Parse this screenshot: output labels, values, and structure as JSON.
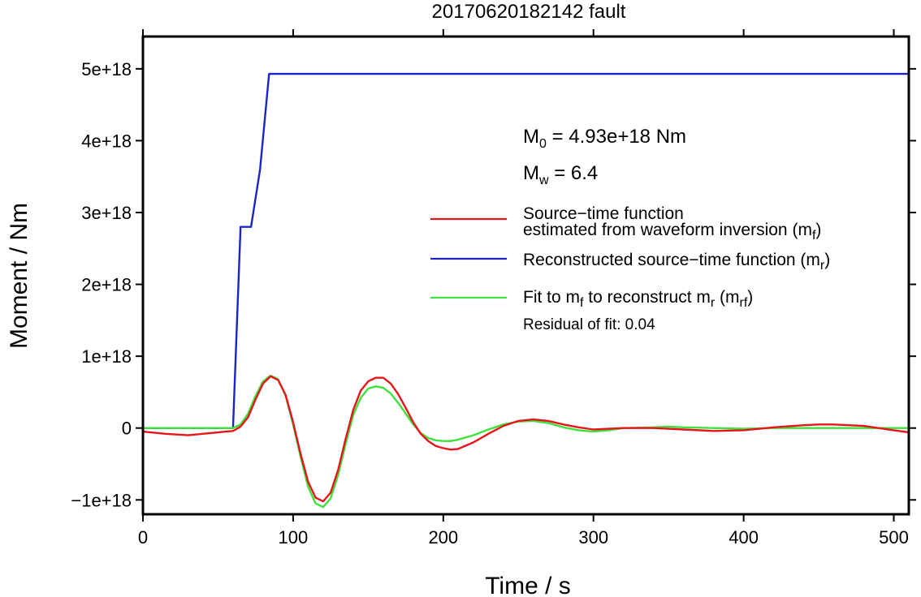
{
  "chart_data": {
    "type": "line",
    "title": "20170620182142 fault",
    "xlabel": "Time / s",
    "ylabel": "Moment / Nm",
    "xlim": [
      0,
      510
    ],
    "ylim": [
      -1.2e+18,
      5.45e+18
    ],
    "x_ticks": [
      0,
      100,
      200,
      300,
      400,
      500
    ],
    "x_tick_labels": [
      "0",
      "100",
      "200",
      "300",
      "400",
      "500"
    ],
    "y_ticks": [
      -1e+18,
      0,
      1e+18,
      2e+18,
      3e+18,
      4e+18,
      5e+18
    ],
    "y_tick_labels": [
      "−1e+18",
      "0",
      "1e+18",
      "2e+18",
      "3e+18",
      "4e+18",
      "5e+18"
    ],
    "grid": false,
    "legend_position": "right",
    "annotations": {
      "m0_prefix": "M",
      "m0_sub": "0",
      "m0_value": " = 4.93e+18 Nm",
      "mw_prefix": "M",
      "mw_sub": "w",
      "mw_value": " = 6.4",
      "residual": "Residual of fit: 0.04"
    },
    "legend": [
      {
        "line1": "Source−time function",
        "line2": "estimated from waveform inversion (m",
        "sub": "f",
        "close": ")",
        "color": "#e8141b"
      },
      {
        "line1": "Reconstructed source−time function (m",
        "sub": "r",
        "close": ")",
        "color": "#1a24c8"
      },
      {
        "line1": "Fit to m",
        "sub1": "f",
        "mid": " to reconstruct m",
        "sub2": "r",
        "mid2": " (m",
        "sub3": "rf",
        "close": ")",
        "color": "#3de23d"
      }
    ],
    "series": [
      {
        "color": "#1a24c8",
        "points": [
          [
            0,
            0
          ],
          [
            60,
            0
          ],
          [
            65,
            2.8e+18
          ],
          [
            72,
            2.8e+18
          ],
          [
            78,
            3.6e+18
          ],
          [
            84,
            4.93e+18
          ],
          [
            510,
            4.93e+18
          ]
        ]
      },
      {
        "color": "#3de23d",
        "points": [
          [
            0,
            0
          ],
          [
            55,
            0
          ],
          [
            60,
            0
          ],
          [
            65,
            5e+16
          ],
          [
            70,
            2e+17
          ],
          [
            75,
            4.5e+17
          ],
          [
            80,
            6.5e+17
          ],
          [
            85,
            7.3e+17
          ],
          [
            90,
            6.8e+17
          ],
          [
            95,
            4.5e+17
          ],
          [
            100,
            5e+16
          ],
          [
            105,
            -4e+17
          ],
          [
            110,
            -8.2e+17
          ],
          [
            115,
            -1.05e+18
          ],
          [
            120,
            -1.1e+18
          ],
          [
            125,
            -9.8e+17
          ],
          [
            130,
            -6.5e+17
          ],
          [
            135,
            -2.2e+17
          ],
          [
            140,
            1.8e+17
          ],
          [
            145,
            4.2e+17
          ],
          [
            150,
            5.5e+17
          ],
          [
            155,
            5.8e+17
          ],
          [
            160,
            5.6e+17
          ],
          [
            165,
            4.8e+17
          ],
          [
            170,
            3.5e+17
          ],
          [
            175,
            2e+17
          ],
          [
            180,
            5e+16
          ],
          [
            185,
            -7e+16
          ],
          [
            190,
            -1.4e+17
          ],
          [
            195,
            -1.7e+17
          ],
          [
            200,
            -1.8e+17
          ],
          [
            205,
            -1.8e+17
          ],
          [
            210,
            -1.6e+17
          ],
          [
            220,
            -1e+17
          ],
          [
            230,
            -2e+16
          ],
          [
            240,
            5e+16
          ],
          [
            250,
            9e+16
          ],
          [
            260,
            1e+17
          ],
          [
            270,
            7e+16
          ],
          [
            280,
            1e+16
          ],
          [
            290,
            -3e+16
          ],
          [
            300,
            -5e+16
          ],
          [
            310,
            -3e+16
          ],
          [
            320,
            0
          ],
          [
            340,
            1e+16
          ],
          [
            350,
            2e+16
          ],
          [
            360,
            1e+16
          ],
          [
            380,
            0
          ],
          [
            400,
            -1e+16
          ],
          [
            420,
            0
          ],
          [
            440,
            0
          ],
          [
            460,
            0
          ],
          [
            480,
            0
          ],
          [
            500,
            0
          ],
          [
            510,
            0
          ]
        ]
      },
      {
        "color": "#e8141b",
        "points": [
          [
            0,
            -5e+16
          ],
          [
            15,
            -8e+16
          ],
          [
            30,
            -1e+17
          ],
          [
            45,
            -7e+16
          ],
          [
            55,
            -5e+16
          ],
          [
            60,
            -4e+16
          ],
          [
            65,
            2e+16
          ],
          [
            70,
            1.5e+17
          ],
          [
            75,
            4e+17
          ],
          [
            80,
            6.2e+17
          ],
          [
            85,
            7.2e+17
          ],
          [
            90,
            6.7e+17
          ],
          [
            95,
            4.6e+17
          ],
          [
            100,
            8e+16
          ],
          [
            105,
            -3.6e+17
          ],
          [
            110,
            -7.5e+17
          ],
          [
            115,
            -9.7e+17
          ],
          [
            120,
            -1.02e+18
          ],
          [
            125,
            -9e+17
          ],
          [
            130,
            -5.8e+17
          ],
          [
            135,
            -1.5e+17
          ],
          [
            140,
            2.5e+17
          ],
          [
            145,
            5.2e+17
          ],
          [
            150,
            6.5e+17
          ],
          [
            155,
            7e+17
          ],
          [
            160,
            7e+17
          ],
          [
            165,
            6.2e+17
          ],
          [
            170,
            4.7e+17
          ],
          [
            175,
            2.8e+17
          ],
          [
            180,
            8e+16
          ],
          [
            185,
            -8e+16
          ],
          [
            190,
            -1.8e+17
          ],
          [
            195,
            -2.5e+17
          ],
          [
            200,
            -2.8e+17
          ],
          [
            205,
            -3e+17
          ],
          [
            210,
            -2.9e+17
          ],
          [
            220,
            -2e+17
          ],
          [
            230,
            -8e+16
          ],
          [
            240,
            3e+16
          ],
          [
            250,
            1e+17
          ],
          [
            260,
            1.2e+17
          ],
          [
            270,
            1e+17
          ],
          [
            280,
            5e+16
          ],
          [
            290,
            1e+16
          ],
          [
            300,
            -2e+16
          ],
          [
            310,
            -1e+16
          ],
          [
            320,
            0
          ],
          [
            340,
            0
          ],
          [
            360,
            -2e+16
          ],
          [
            380,
            -4e+16
          ],
          [
            400,
            -3e+16
          ],
          [
            420,
            1e+16
          ],
          [
            440,
            4e+16
          ],
          [
            450,
            5e+16
          ],
          [
            460,
            5e+16
          ],
          [
            480,
            3e+16
          ],
          [
            500,
            -3e+16
          ],
          [
            510,
            -6e+16
          ]
        ]
      }
    ]
  }
}
